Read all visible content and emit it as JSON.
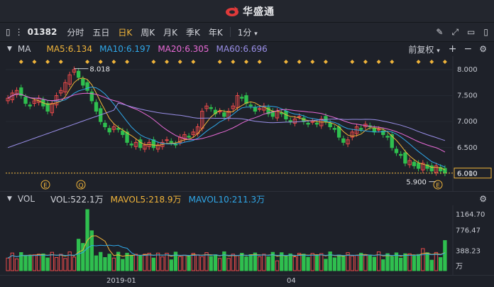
{
  "app": {
    "title": "华盛通"
  },
  "toolbar": {
    "stock_code": "01382",
    "periods": [
      {
        "label": "分时",
        "active": false
      },
      {
        "label": "五日",
        "active": false
      },
      {
        "label": "日K",
        "active": true
      },
      {
        "label": "周K",
        "active": false
      },
      {
        "label": "月K",
        "active": false
      },
      {
        "label": "季K",
        "active": false
      },
      {
        "label": "年K",
        "active": false
      }
    ],
    "minute_select": "1分"
  },
  "ma_bar": {
    "label": "MA",
    "ma5": "MA5:6.134",
    "ma10": "MA10:6.197",
    "ma20": "MA20:6.305",
    "ma60": "MA60:6.696",
    "adjust": "前复权"
  },
  "price_chart": {
    "axis_ticks": [
      "8.000",
      "7.500",
      "7.000",
      "6.500",
      "6.000"
    ],
    "current_price": "6.010",
    "high_marker": "8.018",
    "low_marker": "5.900",
    "event_markers": [
      "E",
      "Q",
      "E"
    ]
  },
  "vol_bar": {
    "label": "VOL",
    "vol": "VOL:522.1万",
    "mavol5": "MAVOL5:218.9万",
    "mavol10": "MAVOL10:211.3万"
  },
  "vol_axis": {
    "ticks": [
      "1164.70",
      "776.47",
      "388.23"
    ],
    "unit": "万"
  },
  "date_axis": {
    "labels": [
      "2019-01",
      "04"
    ]
  },
  "colors": {
    "up": "#e84a4a",
    "down": "#2fbf4f",
    "ma5": "#f0b43a",
    "ma10": "#2fa7e8",
    "ma20": "#e86ad6",
    "ma60": "#9a8fe8",
    "active": "#f0b43a"
  },
  "chart_data": {
    "type": "candlestick",
    "price_range": [
      5.9,
      8.018
    ],
    "close": [
      7.45,
      7.55,
      7.6,
      7.5,
      7.35,
      7.3,
      7.4,
      7.45,
      7.3,
      7.2,
      7.35,
      7.5,
      7.6,
      7.75,
      7.9,
      8.0,
      7.85,
      7.7,
      7.6,
      7.4,
      7.2,
      7.0,
      6.9,
      6.8,
      6.9,
      6.85,
      6.75,
      6.6,
      6.55,
      6.6,
      6.5,
      6.55,
      6.6,
      6.5,
      6.55,
      6.6,
      6.65,
      6.6,
      6.55,
      6.7,
      6.75,
      6.7,
      6.8,
      6.9,
      7.2,
      7.3,
      7.25,
      7.15,
      7.2,
      7.1,
      7.2,
      7.3,
      7.5,
      7.45,
      7.35,
      7.3,
      7.2,
      7.25,
      7.3,
      7.15,
      7.1,
      7.2,
      7.15,
      7.05,
      7.0,
      7.05,
      7.1,
      7.0,
      6.95,
      7.0,
      6.95,
      7.05,
      7.0,
      6.9,
      6.85,
      6.7,
      6.6,
      6.65,
      6.8,
      6.9,
      6.85,
      6.95,
      6.9,
      6.8,
      6.85,
      6.75,
      6.7,
      6.5,
      6.4,
      6.35,
      6.2,
      6.25,
      6.15,
      6.1,
      6.2,
      6.1,
      6.05,
      6.15,
      6.05,
      6.01
    ],
    "volume_max": 1164.7,
    "last_volume": "522.1万"
  }
}
